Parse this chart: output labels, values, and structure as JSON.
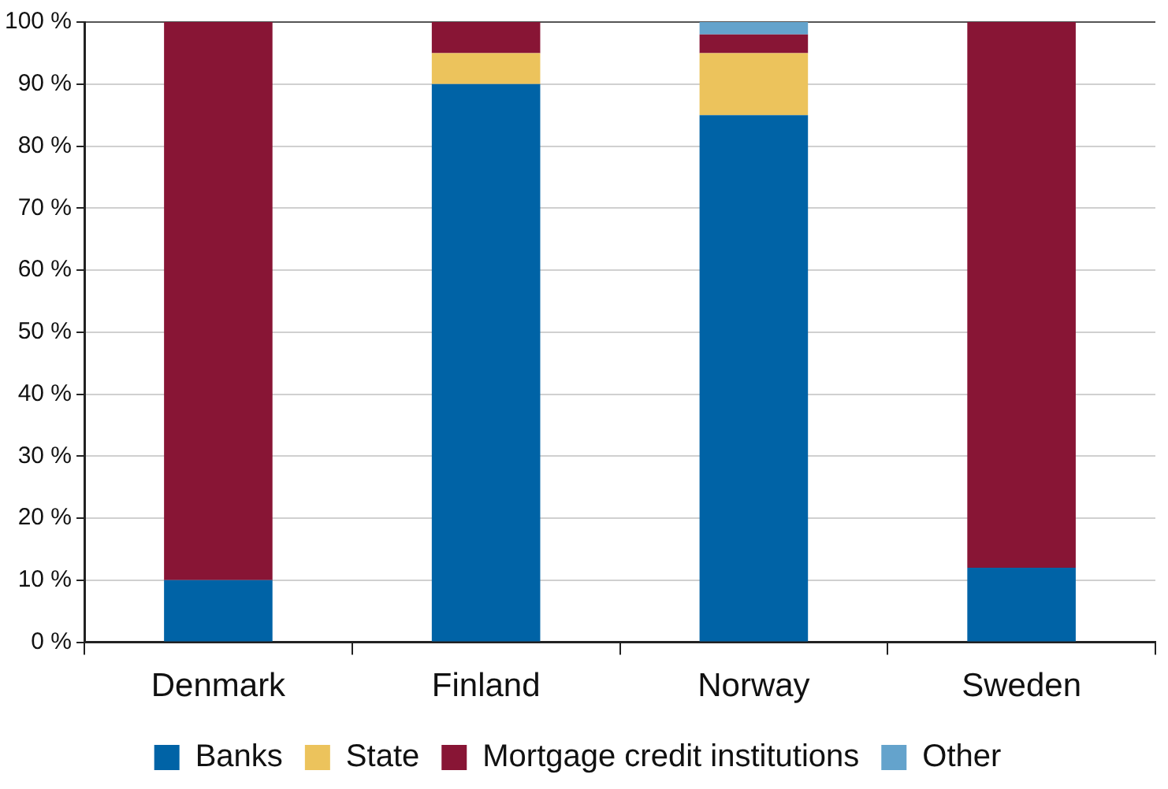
{
  "chart_data": {
    "type": "bar",
    "stacked": true,
    "categories": [
      "Denmark",
      "Finland",
      "Norway",
      "Sweden"
    ],
    "series": [
      {
        "name": "Banks",
        "color": "#0063a6",
        "values": [
          10,
          90,
          85,
          12
        ]
      },
      {
        "name": "State",
        "color": "#ecc35c",
        "values": [
          0,
          5,
          10,
          0
        ]
      },
      {
        "name": "Mortgage credit institutions",
        "color": "#881535",
        "values": [
          90,
          5,
          3,
          88
        ]
      },
      {
        "name": "Other",
        "color": "#64a3cc",
        "values": [
          0,
          0,
          2,
          0
        ]
      }
    ],
    "ylim": [
      0,
      100
    ],
    "yticks": [
      {
        "value": 0,
        "label": "0 %"
      },
      {
        "value": 10,
        "label": "10 %"
      },
      {
        "value": 20,
        "label": "20 %"
      },
      {
        "value": 30,
        "label": "30 %"
      },
      {
        "value": 40,
        "label": "40 %"
      },
      {
        "value": 50,
        "label": "50 %"
      },
      {
        "value": 60,
        "label": "60 %"
      },
      {
        "value": 70,
        "label": "70 %"
      },
      {
        "value": 80,
        "label": "80 %"
      },
      {
        "value": 90,
        "label": "90 %"
      },
      {
        "value": 100,
        "label": "100 %"
      }
    ],
    "grid": "y",
    "legend": "bottom"
  }
}
